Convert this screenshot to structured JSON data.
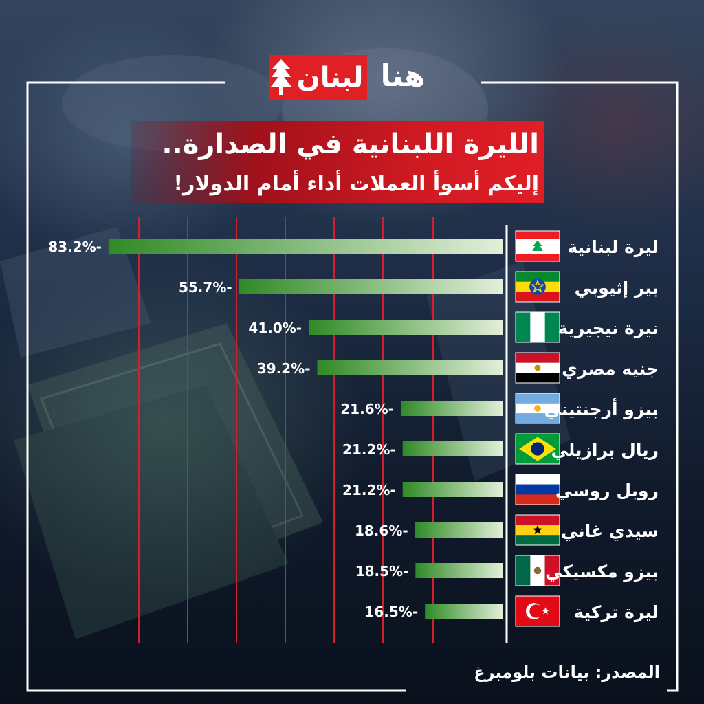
{
  "brand": {
    "logo_red_text": "لبنان",
    "logo_white_text": "هنا",
    "logo_color": "#e12026"
  },
  "header": {
    "title": "الليرة اللبنانية في الصدارة..",
    "subtitle": "إليكم أسوأ العملات أداء أمام الدولار!"
  },
  "source": "المصدر: بيانات بلومبرغ",
  "colors": {
    "bar_dark": "#2f8a25",
    "bar_light": "#e3efda",
    "gridline": "#d21f2b",
    "frame": "#ffffff"
  },
  "chart_data": {
    "type": "bar",
    "orientation": "horizontal",
    "categories": [
      "ليرة لبنانية",
      "بير إثيوبي",
      "نيرة نيجيرية",
      "جنيه مصري",
      "بيزو أرجنتيني",
      "ريال برازيلي",
      "روبل روسي",
      "سيدي غاني",
      "بيزو مكسيكي",
      "ليرة تركية"
    ],
    "values": [
      -83.2,
      -55.7,
      -41.0,
      -39.2,
      -21.6,
      -21.2,
      -21.2,
      -18.6,
      -18.5,
      -16.5
    ],
    "labels": [
      "83.2%-",
      "55.7%-",
      "41.0%-",
      "39.2%-",
      "21.6%-",
      "21.2%-",
      "21.2%-",
      "18.6%-",
      "18.5%-",
      "16.5%-"
    ],
    "flags": [
      "lebanon-flag-icon",
      "ethiopia-flag-icon",
      "nigeria-flag-icon",
      "egypt-flag-icon",
      "argentina-flag-icon",
      "brazil-flag-icon",
      "russia-flag-icon",
      "ghana-flag-icon",
      "mexico-flag-icon",
      "turkey-flag-icon"
    ],
    "unit": "%",
    "xlim": [
      -100,
      0
    ],
    "grid": true
  }
}
